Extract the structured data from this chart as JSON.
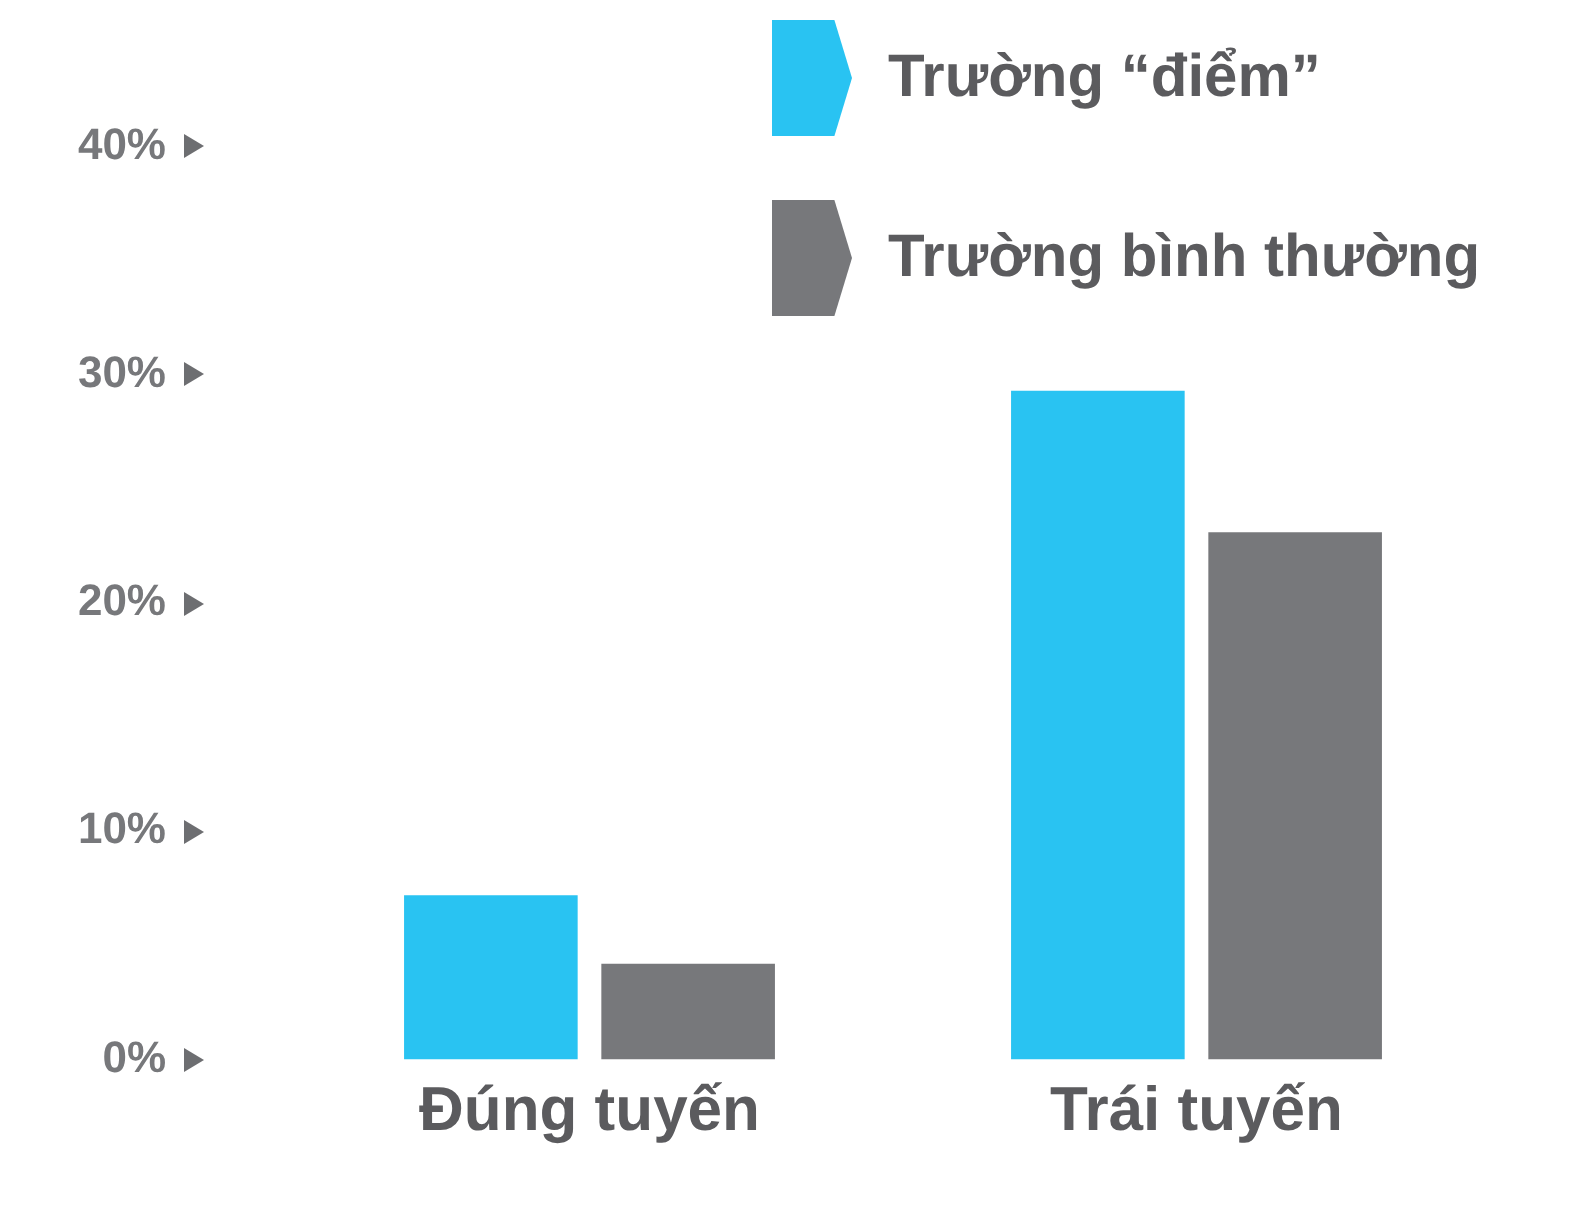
{
  "chart_data": {
    "type": "bar",
    "categories": [
      "Đúng tuyến",
      "Trái tuyến"
    ],
    "series": [
      {
        "name": "Trường “điểm”",
        "color": "#29c3f2",
        "values": [
          7.2,
          29.3
        ]
      },
      {
        "name": "Trường bình thường",
        "color": "#77787b",
        "values": [
          4.2,
          23.1
        ]
      }
    ],
    "ylim": [
      0,
      40
    ],
    "yticks": [
      {
        "value": 0,
        "label": "0%"
      },
      {
        "value": 10,
        "label": "10%"
      },
      {
        "value": 20,
        "label": "20%"
      },
      {
        "value": 30,
        "label": "30%"
      },
      {
        "value": 40,
        "label": "40%"
      }
    ],
    "grid": false,
    "legend": "top right"
  }
}
